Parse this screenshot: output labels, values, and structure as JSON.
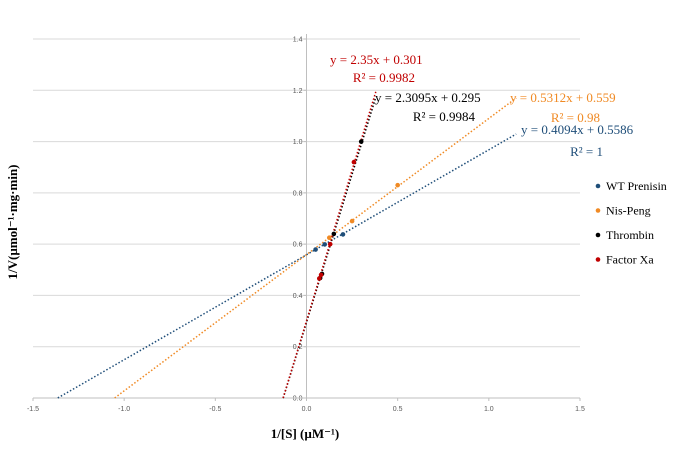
{
  "chart_data": {
    "type": "scatter",
    "title": "",
    "xlabel": "1/[S] (µM⁻¹)",
    "ylabel": "1/V(µmol⁻¹·mg·min)",
    "xlim": [
      -1.5,
      1.5
    ],
    "ylim": [
      0,
      1.4
    ],
    "x_ticks": [
      "-1.5",
      "-1.0",
      "-0.5",
      "0.0",
      "0.5",
      "1.0",
      "1.5"
    ],
    "y_ticks": [
      "0.0",
      "0.2",
      "0.4",
      "0.6",
      "0.8",
      "1.0",
      "1.2",
      "1.4"
    ],
    "grid": "horizontal",
    "legend_position": "right",
    "series": [
      {
        "name": "WT Prenisin",
        "color": "#1f4e79",
        "points": [
          [
            0.05,
            0.579
          ],
          [
            0.1,
            0.599
          ],
          [
            0.2,
            0.638
          ]
        ],
        "trend": {
          "slope": 0.4094,
          "intercept": 0.5586,
          "x_range": [
            -1.364,
            1.15
          ],
          "equation": "y = 0.4094x + 0.5586",
          "r2": "R² = 1"
        }
      },
      {
        "name": "Nis-Peng",
        "color": "#f08a24",
        "points": [
          [
            0.125,
            0.625
          ],
          [
            0.25,
            0.69
          ],
          [
            0.5,
            0.83
          ]
        ],
        "trend": {
          "slope": 0.5312,
          "intercept": 0.559,
          "x_range": [
            -1.052,
            1.15
          ],
          "equation": "y = 0.5312x + 0.559",
          "r2": "R² = 0.98"
        }
      },
      {
        "name": "Thrombin",
        "color": "#000000",
        "points": [
          [
            0.075,
            0.468
          ],
          [
            0.085,
            0.484
          ],
          [
            0.15,
            0.64
          ],
          [
            0.3,
            1.0
          ]
        ],
        "trend": {
          "slope": 2.3095,
          "intercept": 0.295,
          "x_range": [
            -0.128,
            0.38
          ],
          "equation": "y = 2.3095x + 0.295",
          "r2": "R² = 0.9984"
        }
      },
      {
        "name": "Factor Xa",
        "color": "#c00000",
        "points": [
          [
            0.07,
            0.466
          ],
          [
            0.08,
            0.48
          ],
          [
            0.13,
            0.6
          ],
          [
            0.26,
            0.92
          ]
        ],
        "trend": {
          "slope": 2.35,
          "intercept": 0.301,
          "x_range": [
            -0.128,
            0.38
          ],
          "equation": "y = 2.35x + 0.301",
          "r2": "R² = 0.9982"
        }
      }
    ]
  }
}
